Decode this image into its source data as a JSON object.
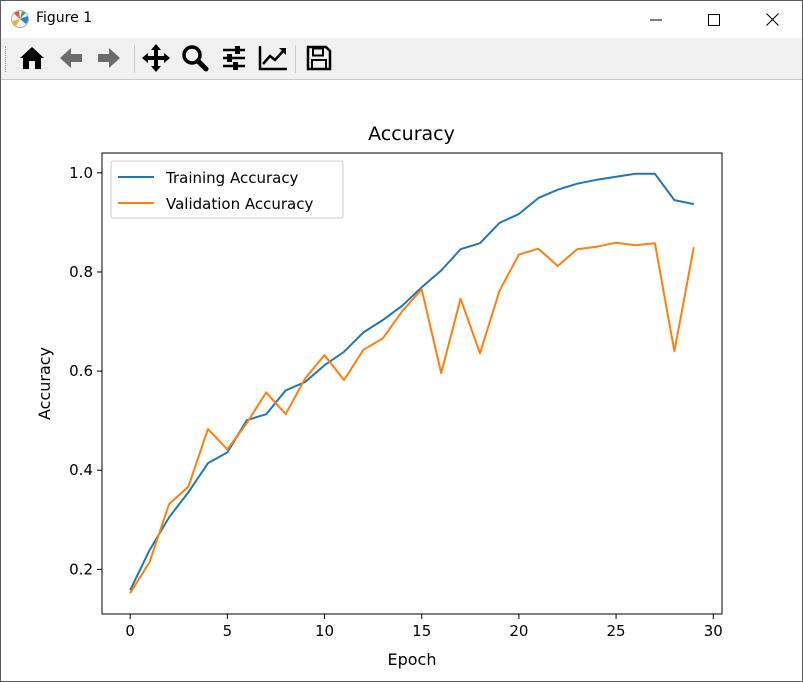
{
  "window": {
    "title": "Figure 1"
  },
  "toolbar": {
    "buttons": [
      {
        "name": "home-icon",
        "label": "Home"
      },
      {
        "name": "back-icon",
        "label": "Back"
      },
      {
        "name": "forward-icon",
        "label": "Forward"
      },
      {
        "name": "pan-icon",
        "label": "Pan"
      },
      {
        "name": "zoom-icon",
        "label": "Zoom"
      },
      {
        "name": "configure-subplots-icon",
        "label": "Subplots"
      },
      {
        "name": "edit-axis-icon",
        "label": "Customize"
      },
      {
        "name": "save-icon",
        "label": "Save"
      }
    ]
  },
  "chart_data": {
    "type": "line",
    "title": "Accuracy",
    "xlabel": "Epoch",
    "ylabel": "Accuracy",
    "xlim": [
      -1.45,
      30.45
    ],
    "ylim": [
      0.11,
      1.04
    ],
    "xticks": [
      0,
      5,
      10,
      15,
      20,
      25,
      30
    ],
    "yticks": [
      0.2,
      0.4,
      0.6,
      0.8,
      1.0
    ],
    "xtick_labels": [
      "0",
      "5",
      "10",
      "15",
      "20",
      "25",
      "30"
    ],
    "ytick_labels": [
      "0.2",
      "0.4",
      "0.6",
      "0.8",
      "1.0"
    ],
    "grid": false,
    "legend_position": "upper-left",
    "x": [
      0,
      1,
      2,
      3,
      4,
      5,
      6,
      7,
      8,
      9,
      10,
      11,
      12,
      13,
      14,
      15,
      16,
      17,
      18,
      19,
      20,
      21,
      22,
      23,
      24,
      25,
      26,
      27,
      28,
      29
    ],
    "series": [
      {
        "name": "Training Accuracy",
        "color": "#1f77b4",
        "values": [
          0.158,
          0.239,
          0.305,
          0.356,
          0.414,
          0.436,
          0.501,
          0.513,
          0.561,
          0.578,
          0.612,
          0.639,
          0.678,
          0.703,
          0.732,
          0.769,
          0.803,
          0.846,
          0.858,
          0.899,
          0.917,
          0.949,
          0.966,
          0.978,
          0.986,
          0.992,
          0.998,
          0.998,
          0.945,
          0.937
        ]
      },
      {
        "name": "Validation Accuracy",
        "color": "#ff7f0e",
        "values": [
          0.152,
          0.215,
          0.332,
          0.367,
          0.483,
          0.442,
          0.495,
          0.557,
          0.513,
          0.585,
          0.632,
          0.582,
          0.643,
          0.666,
          0.721,
          0.765,
          0.596,
          0.746,
          0.636,
          0.762,
          0.835,
          0.847,
          0.812,
          0.846,
          0.851,
          0.859,
          0.854,
          0.858,
          0.64,
          0.85
        ]
      }
    ]
  }
}
